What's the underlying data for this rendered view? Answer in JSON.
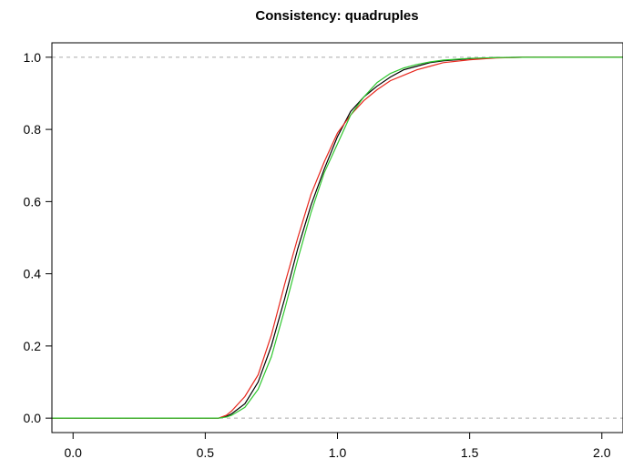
{
  "chart_data": {
    "type": "line",
    "title": "Consistency:   quadruples",
    "xlabel": "",
    "ylabel": "",
    "xlim": [
      -0.08,
      2.08
    ],
    "ylim": [
      -0.04,
      1.04
    ],
    "x_ticks": [
      0.0,
      0.5,
      1.0,
      1.5,
      2.0
    ],
    "x_tick_labels": [
      "0.0",
      "0.5",
      "1.0",
      "1.5",
      "2.0"
    ],
    "y_ticks": [
      0.0,
      0.2,
      0.4,
      0.6,
      0.8,
      1.0
    ],
    "y_tick_labels": [
      "0.0",
      "0.2",
      "0.4",
      "0.6",
      "0.8",
      "1.0"
    ],
    "reference_lines": [
      {
        "y": 0.0,
        "style": "dashed",
        "color": "#aaaaaa"
      },
      {
        "y": 1.0,
        "style": "dashed",
        "color": "#aaaaaa"
      }
    ],
    "grid": false,
    "legend": "none",
    "series": [
      {
        "color": "#000000",
        "x": [
          -0.08,
          0.5,
          0.55,
          0.58,
          0.6,
          0.65,
          0.7,
          0.75,
          0.8,
          0.85,
          0.9,
          0.95,
          1.0,
          1.05,
          1.1,
          1.15,
          1.2,
          1.25,
          1.3,
          1.35,
          1.4,
          1.5,
          1.6,
          1.7,
          1.8,
          2.08
        ],
        "y": [
          0.0,
          0.0,
          0.0,
          0.005,
          0.012,
          0.04,
          0.1,
          0.2,
          0.33,
          0.47,
          0.59,
          0.69,
          0.78,
          0.85,
          0.89,
          0.92,
          0.945,
          0.965,
          0.975,
          0.985,
          0.99,
          0.996,
          0.999,
          1.0,
          1.0,
          1.0
        ]
      },
      {
        "color": "#e8261c",
        "x": [
          -0.08,
          0.5,
          0.55,
          0.58,
          0.6,
          0.65,
          0.7,
          0.75,
          0.8,
          0.85,
          0.9,
          0.95,
          1.0,
          1.05,
          1.1,
          1.15,
          1.2,
          1.25,
          1.3,
          1.35,
          1.4,
          1.5,
          1.6,
          1.7,
          1.8,
          2.08
        ],
        "y": [
          0.0,
          0.0,
          0.0,
          0.008,
          0.02,
          0.06,
          0.12,
          0.23,
          0.37,
          0.5,
          0.62,
          0.71,
          0.79,
          0.84,
          0.88,
          0.91,
          0.935,
          0.95,
          0.965,
          0.975,
          0.985,
          0.993,
          0.998,
          1.0,
          1.0,
          1.0
        ]
      },
      {
        "color": "#2ec72e",
        "x": [
          -0.08,
          0.5,
          0.55,
          0.58,
          0.6,
          0.65,
          0.7,
          0.75,
          0.8,
          0.85,
          0.9,
          0.95,
          1.0,
          1.05,
          1.1,
          1.15,
          1.2,
          1.25,
          1.3,
          1.35,
          1.4,
          1.5,
          1.6,
          1.7,
          1.8,
          2.08
        ],
        "y": [
          0.0,
          0.0,
          0.0,
          0.003,
          0.008,
          0.03,
          0.08,
          0.17,
          0.3,
          0.44,
          0.57,
          0.68,
          0.76,
          0.84,
          0.89,
          0.93,
          0.955,
          0.97,
          0.98,
          0.987,
          0.992,
          0.997,
          0.999,
          1.0,
          1.0,
          1.0
        ]
      }
    ]
  }
}
